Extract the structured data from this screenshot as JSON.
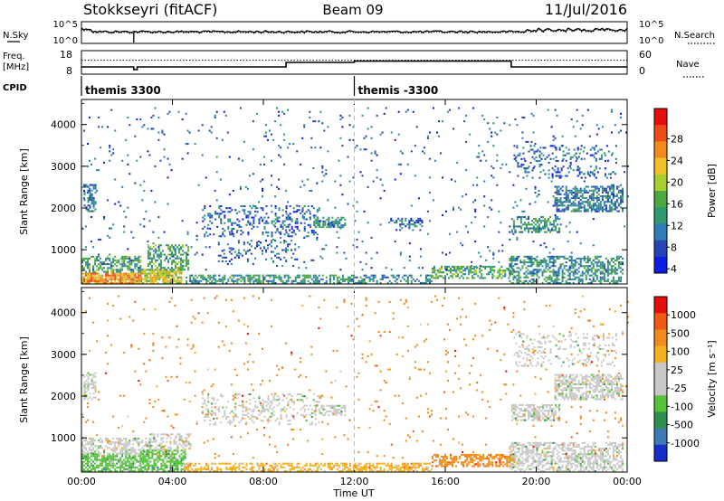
{
  "header": {
    "station": "Stokkseyri (fitACF)",
    "beam": "Beam 09",
    "date": "11/Jul/2016"
  },
  "summary_panel": {
    "left_labels": {
      "nsky": "N.Sky",
      "freq": "Freq.",
      "freq_unit": "[MHz]",
      "cpid": "CPID"
    },
    "right_labels": {
      "nsearch": "N.Search",
      "nave": "Nave"
    },
    "noise_ticks_left": [
      "10^5",
      "10^0"
    ],
    "noise_ticks_right": [
      "10^5",
      "10^0"
    ],
    "freq_ticks": [
      "18",
      "8"
    ],
    "nave_ticks": [
      "60",
      "0"
    ],
    "freq_mhz": [
      {
        "t": 0.0,
        "v": 10.0
      },
      {
        "t": 2.3,
        "v": 10.0
      },
      {
        "t": 2.3,
        "v": 8.5
      },
      {
        "t": 2.45,
        "v": 8.5
      },
      {
        "t": 2.45,
        "v": 10.0
      },
      {
        "t": 9.0,
        "v": 10.0
      },
      {
        "t": 9.0,
        "v": 12.5
      },
      {
        "t": 12.0,
        "v": 12.5
      },
      {
        "t": 12.0,
        "v": 13.2
      },
      {
        "t": 18.9,
        "v": 13.2
      },
      {
        "t": 18.9,
        "v": 10.0
      },
      {
        "t": 24.0,
        "v": 10.0
      }
    ],
    "nave_level": 40,
    "cpid_segments": [
      {
        "start": 0,
        "label": "themis 3300"
      },
      {
        "start": 12,
        "label": "themis -3300"
      }
    ]
  },
  "chart_data": [
    {
      "type": "heatmap",
      "title": "",
      "xlabel": "Time UT",
      "ylabel": "Slant Range [km]",
      "x_unit": "hours UT",
      "xlim": [
        0,
        24
      ],
      "ylim": [
        180,
        4600
      ],
      "x_ticks": [
        "00:00",
        "04:00",
        "08:00",
        "12:00",
        "16:00",
        "20:00",
        "00:00"
      ],
      "y_ticks": [
        "1000",
        "2000",
        "3000",
        "4000"
      ],
      "colorbar": {
        "label": "Power [dB]",
        "ticks": [
          "28",
          "24",
          "20",
          "16",
          "12",
          "8",
          "4"
        ],
        "min": 0,
        "max": 30,
        "colors": [
          "#0a1ee6",
          "#2844b4",
          "#2f7db8",
          "#2f9a6f",
          "#4ea842",
          "#a7cf2f",
          "#f2c12a",
          "#f28a1c",
          "#ef4b19",
          "#e60d0d"
        ]
      },
      "blobs": [
        {
          "t": [
            0.1,
            0.6
          ],
          "r": [
            1900,
            2550
          ],
          "v": 8,
          "d": 0.55
        },
        {
          "t": [
            0.0,
            2.6
          ],
          "r": [
            180,
            450
          ],
          "v": 22,
          "d": 0.9
        },
        {
          "t": [
            0.0,
            2.6
          ],
          "r": [
            450,
            850
          ],
          "v": 12,
          "d": 0.55
        },
        {
          "t": [
            2.6,
            4.4
          ],
          "r": [
            180,
            500
          ],
          "v": 18,
          "d": 0.8
        },
        {
          "t": [
            2.9,
            4.7
          ],
          "r": [
            500,
            1100
          ],
          "v": 12,
          "d": 0.5
        },
        {
          "t": [
            4.5,
            12.0
          ],
          "r": [
            180,
            380
          ],
          "v": 10,
          "d": 0.6
        },
        {
          "t": [
            5.3,
            10.5
          ],
          "r": [
            1300,
            2050
          ],
          "v": 6,
          "d": 0.22
        },
        {
          "t": [
            6.0,
            9.5
          ],
          "r": [
            700,
            1200
          ],
          "v": 6,
          "d": 0.15
        },
        {
          "t": [
            10.2,
            11.6
          ],
          "r": [
            1520,
            1780
          ],
          "v": 10,
          "d": 0.6
        },
        {
          "t": [
            12.0,
            15.4
          ],
          "r": [
            180,
            380
          ],
          "v": 9,
          "d": 0.45
        },
        {
          "t": [
            15.4,
            19.0
          ],
          "r": [
            300,
            600
          ],
          "v": 12,
          "d": 0.5
        },
        {
          "t": [
            13.5,
            15.0
          ],
          "r": [
            1450,
            1750
          ],
          "v": 7,
          "d": 0.35
        },
        {
          "t": [
            18.8,
            23.8
          ],
          "r": [
            180,
            850
          ],
          "v": 10,
          "d": 0.5
        },
        {
          "t": [
            18.9,
            21.0
          ],
          "r": [
            1400,
            1800
          ],
          "v": 10,
          "d": 0.55
        },
        {
          "t": [
            20.8,
            23.8
          ],
          "r": [
            1900,
            2500
          ],
          "v": 8,
          "d": 0.6
        },
        {
          "t": [
            19.0,
            23.5
          ],
          "r": [
            2700,
            3500
          ],
          "v": 6,
          "d": 0.18
        },
        {
          "t": [
            0.0,
            24.0
          ],
          "r": [
            500,
            4400
          ],
          "v": 6,
          "d": 0.025
        }
      ]
    },
    {
      "type": "heatmap",
      "title": "",
      "xlabel": "Time UT",
      "ylabel": "Slant Range [km]",
      "x_unit": "hours UT",
      "xlim": [
        0,
        24
      ],
      "ylim": [
        180,
        4600
      ],
      "x_ticks": [
        "00:00",
        "04:00",
        "08:00",
        "12:00",
        "16:00",
        "20:00",
        "00:00"
      ],
      "y_ticks": [
        "1000",
        "2000",
        "3000",
        "4000"
      ],
      "colorbar": {
        "label": "Velocity [m s⁻¹]",
        "ticks": [
          "1000",
          "500",
          "100",
          "25",
          "-25",
          "-100",
          "-500",
          "-1000"
        ],
        "colors": [
          "#1530c8",
          "#3d7ab8",
          "#2e8f4e",
          "#55c23a",
          "#c8c8c8",
          "#c8c8c8",
          "#f2b21f",
          "#f28a1c",
          "#f05a14",
          "#e60d0d"
        ]
      },
      "blobs": [
        {
          "t": [
            0.1,
            0.6
          ],
          "r": [
            1900,
            2550
          ],
          "c": 4,
          "d": 0.5
        },
        {
          "t": [
            0.0,
            2.6
          ],
          "r": [
            180,
            600
          ],
          "c": 3,
          "d": 0.7
        },
        {
          "t": [
            0.0,
            3.0
          ],
          "r": [
            600,
            1000
          ],
          "c": 4,
          "d": 0.5
        },
        {
          "t": [
            2.6,
            4.6
          ],
          "r": [
            180,
            700
          ],
          "c": 3,
          "d": 0.65
        },
        {
          "t": [
            3.0,
            4.8
          ],
          "r": [
            700,
            1100
          ],
          "c": 4,
          "d": 0.5
        },
        {
          "t": [
            4.5,
            12.0
          ],
          "r": [
            180,
            400
          ],
          "c": 6,
          "d": 0.5
        },
        {
          "t": [
            5.3,
            10.5
          ],
          "r": [
            1300,
            2050
          ],
          "c": 4,
          "d": 0.22
        },
        {
          "t": [
            10.2,
            11.6
          ],
          "r": [
            1520,
            1780
          ],
          "c": 4,
          "d": 0.5
        },
        {
          "t": [
            12.0,
            15.4
          ],
          "r": [
            180,
            380
          ],
          "c": 6,
          "d": 0.6
        },
        {
          "t": [
            15.4,
            19.0
          ],
          "r": [
            300,
            600
          ],
          "c": 7,
          "d": 0.6
        },
        {
          "t": [
            18.8,
            23.8
          ],
          "r": [
            180,
            900
          ],
          "c": 4,
          "d": 0.55
        },
        {
          "t": [
            18.9,
            21.0
          ],
          "r": [
            1400,
            1800
          ],
          "c": 4,
          "d": 0.6
        },
        {
          "t": [
            20.8,
            23.8
          ],
          "r": [
            1900,
            2500
          ],
          "c": 4,
          "d": 0.6
        },
        {
          "t": [
            19.0,
            23.5
          ],
          "r": [
            2700,
            3500
          ],
          "c": 4,
          "d": 0.2
        },
        {
          "t": [
            0.0,
            24.0
          ],
          "r": [
            500,
            4400
          ],
          "c": 7,
          "d": 0.02
        }
      ]
    }
  ]
}
